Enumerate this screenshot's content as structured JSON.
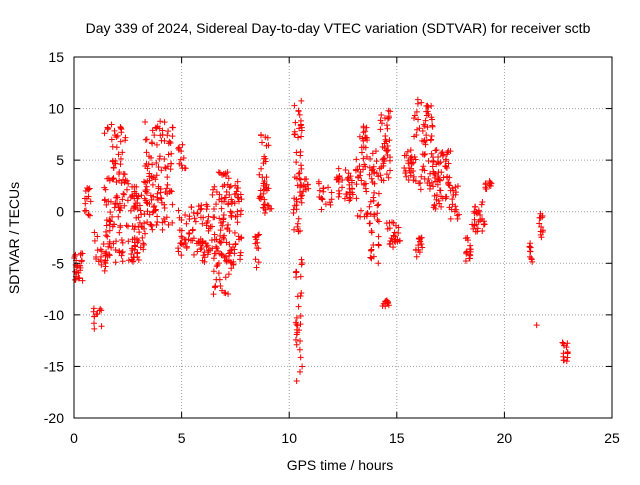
{
  "chart_data": {
    "type": "scatter",
    "title": "Day 339 of 2024, Sidereal Day-to-day VTEC variation (SDTVAR) for receiver sctb",
    "xlabel": "GPS time / hours",
    "ylabel": "SDTVAR / TECUs",
    "xlim": [
      0,
      25
    ],
    "ylim": [
      -20,
      15
    ],
    "xticks": [
      0,
      5,
      10,
      15,
      20,
      25
    ],
    "yticks": [
      -20,
      -15,
      -10,
      -5,
      0,
      5,
      10,
      15
    ],
    "xtick_labels": [
      "0",
      "5",
      "10",
      "15",
      "20",
      "25"
    ],
    "ytick_labels": [
      "-20",
      "-15",
      "-10",
      "-5",
      "0",
      "5",
      "10",
      "15"
    ],
    "grid": true,
    "marker": "+",
    "colors": {
      "points": "#ff0000",
      "grid": "#a0a0a0",
      "axes": "#000000"
    },
    "clusters": [
      {
        "x0": 0.0,
        "x1": 0.4,
        "ymin": -7.0,
        "ymax": -4.0,
        "n": 25
      },
      {
        "x0": 0.5,
        "x1": 0.8,
        "ymin": -0.5,
        "ymax": 2.5,
        "n": 15
      },
      {
        "x0": 0.9,
        "x1": 1.3,
        "ymin": -11.5,
        "ymax": -9.0,
        "n": 12
      },
      {
        "x0": 0.9,
        "x1": 1.5,
        "ymin": -6.0,
        "ymax": -2.0,
        "n": 20
      },
      {
        "x0": 1.4,
        "x1": 2.4,
        "ymin": -5.0,
        "ymax": 8.5,
        "n": 110
      },
      {
        "x0": 2.4,
        "x1": 3.4,
        "ymin": -5.0,
        "ymax": 3.0,
        "n": 80
      },
      {
        "x0": 3.3,
        "x1": 4.6,
        "ymin": -2.0,
        "ymax": 8.8,
        "n": 110
      },
      {
        "x0": 4.8,
        "x1": 5.2,
        "ymin": 4.0,
        "ymax": 6.5,
        "n": 12
      },
      {
        "x0": 4.8,
        "x1": 5.6,
        "ymin": -4.5,
        "ymax": 0.5,
        "n": 35
      },
      {
        "x0": 5.6,
        "x1": 6.4,
        "ymin": -5.0,
        "ymax": 1.0,
        "n": 45
      },
      {
        "x0": 6.4,
        "x1": 7.2,
        "ymin": -8.0,
        "ymax": 4.0,
        "n": 90
      },
      {
        "x0": 7.2,
        "x1": 7.8,
        "ymin": -5.5,
        "ymax": 3.0,
        "n": 55
      },
      {
        "x0": 8.4,
        "x1": 8.6,
        "ymin": -5.5,
        "ymax": -2.0,
        "n": 12
      },
      {
        "x0": 8.6,
        "x1": 9.2,
        "ymin": -0.5,
        "ymax": 8.0,
        "n": 45
      },
      {
        "x0": 10.2,
        "x1": 10.6,
        "ymin": -2.0,
        "ymax": 11.0,
        "n": 50
      },
      {
        "x0": 10.3,
        "x1": 10.6,
        "ymin": -16.5,
        "ymax": -4.0,
        "n": 30
      },
      {
        "x0": 10.5,
        "x1": 10.9,
        "ymin": 1.5,
        "ymax": 3.5,
        "n": 12
      },
      {
        "x0": 11.3,
        "x1": 12.0,
        "ymin": 0.0,
        "ymax": 3.0,
        "n": 18
      },
      {
        "x0": 12.2,
        "x1": 13.0,
        "ymin": 1.0,
        "ymax": 4.2,
        "n": 35
      },
      {
        "x0": 13.1,
        "x1": 13.7,
        "ymin": -0.5,
        "ymax": 8.5,
        "n": 45
      },
      {
        "x0": 13.7,
        "x1": 14.2,
        "ymin": -5.0,
        "ymax": 6.5,
        "n": 45
      },
      {
        "x0": 14.2,
        "x1": 14.7,
        "ymin": 3.0,
        "ymax": 9.8,
        "n": 40
      },
      {
        "x0": 14.3,
        "x1": 14.7,
        "ymin": -9.2,
        "ymax": -8.5,
        "n": 12
      },
      {
        "x0": 14.5,
        "x1": 15.2,
        "ymin": -3.5,
        "ymax": -1.0,
        "n": 25
      },
      {
        "x0": 15.3,
        "x1": 15.8,
        "ymin": 3.0,
        "ymax": 6.0,
        "n": 25
      },
      {
        "x0": 15.8,
        "x1": 16.2,
        "ymin": -4.5,
        "ymax": -2.5,
        "n": 15
      },
      {
        "x0": 15.8,
        "x1": 16.7,
        "ymin": 2.0,
        "ymax": 11.0,
        "n": 65
      },
      {
        "x0": 16.7,
        "x1": 17.5,
        "ymin": 0.0,
        "ymax": 6.0,
        "n": 60
      },
      {
        "x0": 17.5,
        "x1": 17.9,
        "ymin": -1.0,
        "ymax": 2.5,
        "n": 18
      },
      {
        "x0": 18.2,
        "x1": 18.5,
        "ymin": -4.8,
        "ymax": -2.5,
        "n": 15
      },
      {
        "x0": 18.5,
        "x1": 19.1,
        "ymin": -2.0,
        "ymax": 1.0,
        "n": 28
      },
      {
        "x0": 19.1,
        "x1": 19.4,
        "ymin": 2.2,
        "ymax": 3.0,
        "n": 10
      },
      {
        "x0": 21.1,
        "x1": 21.3,
        "ymin": -5.0,
        "ymax": -3.0,
        "n": 10
      },
      {
        "x0": 21.5,
        "x1": 21.5,
        "ymin": -11.0,
        "ymax": -11.0,
        "n": 1
      },
      {
        "x0": 21.6,
        "x1": 21.8,
        "ymin": -2.5,
        "ymax": 0.0,
        "n": 12
      },
      {
        "x0": 22.7,
        "x1": 22.95,
        "ymin": -14.5,
        "ymax": -12.5,
        "n": 14
      }
    ]
  }
}
